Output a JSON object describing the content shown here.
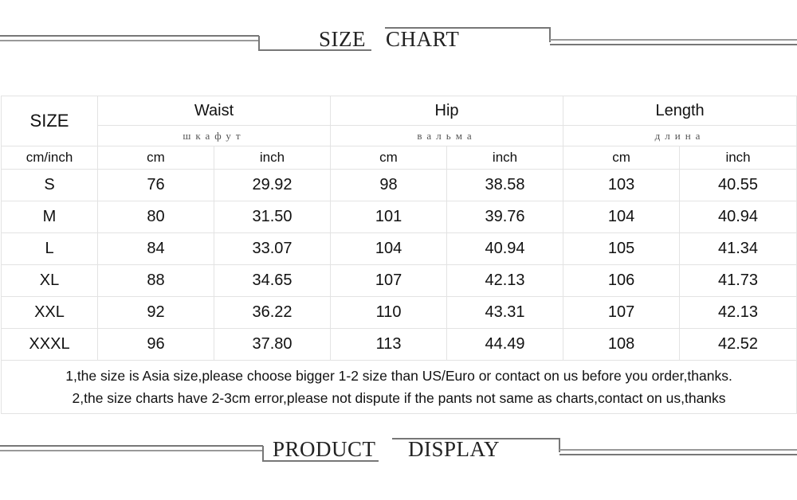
{
  "top_banner": {
    "word1": "SIZE",
    "word2": "CHART"
  },
  "table": {
    "size_header": "SIZE",
    "groups": [
      {
        "label": "Waist",
        "sub": "шкафут"
      },
      {
        "label": "Hip",
        "sub": "вальма"
      },
      {
        "label": "Length",
        "sub": "длина"
      }
    ],
    "unit_header": "cm/inch",
    "units": [
      "cm",
      "inch",
      "cm",
      "inch",
      "cm",
      "inch"
    ],
    "rows": [
      [
        "S",
        "76",
        "29.92",
        "98",
        "38.58",
        "103",
        "40.55"
      ],
      [
        "M",
        "80",
        "31.50",
        "101",
        "39.76",
        "104",
        "40.94"
      ],
      [
        "L",
        "84",
        "33.07",
        "104",
        "40.94",
        "105",
        "41.34"
      ],
      [
        "XL",
        "88",
        "34.65",
        "107",
        "42.13",
        "106",
        "41.73"
      ],
      [
        "XXL",
        "92",
        "36.22",
        "110",
        "43.31",
        "107",
        "42.13"
      ],
      [
        "XXXL",
        "96",
        "37.80",
        "113",
        "44.49",
        "108",
        "42.52"
      ]
    ],
    "notes": [
      "1,the size is Asia size,please choose bigger 1-2 size than US/Euro or contact on us before you order,thanks.",
      "2,the size charts have 2-3cm error,please not dispute if the pants not same as charts,contact on us,thanks"
    ]
  },
  "bottom_banner": {
    "word1": "PRODUCT",
    "word2": "DISPLAY"
  }
}
